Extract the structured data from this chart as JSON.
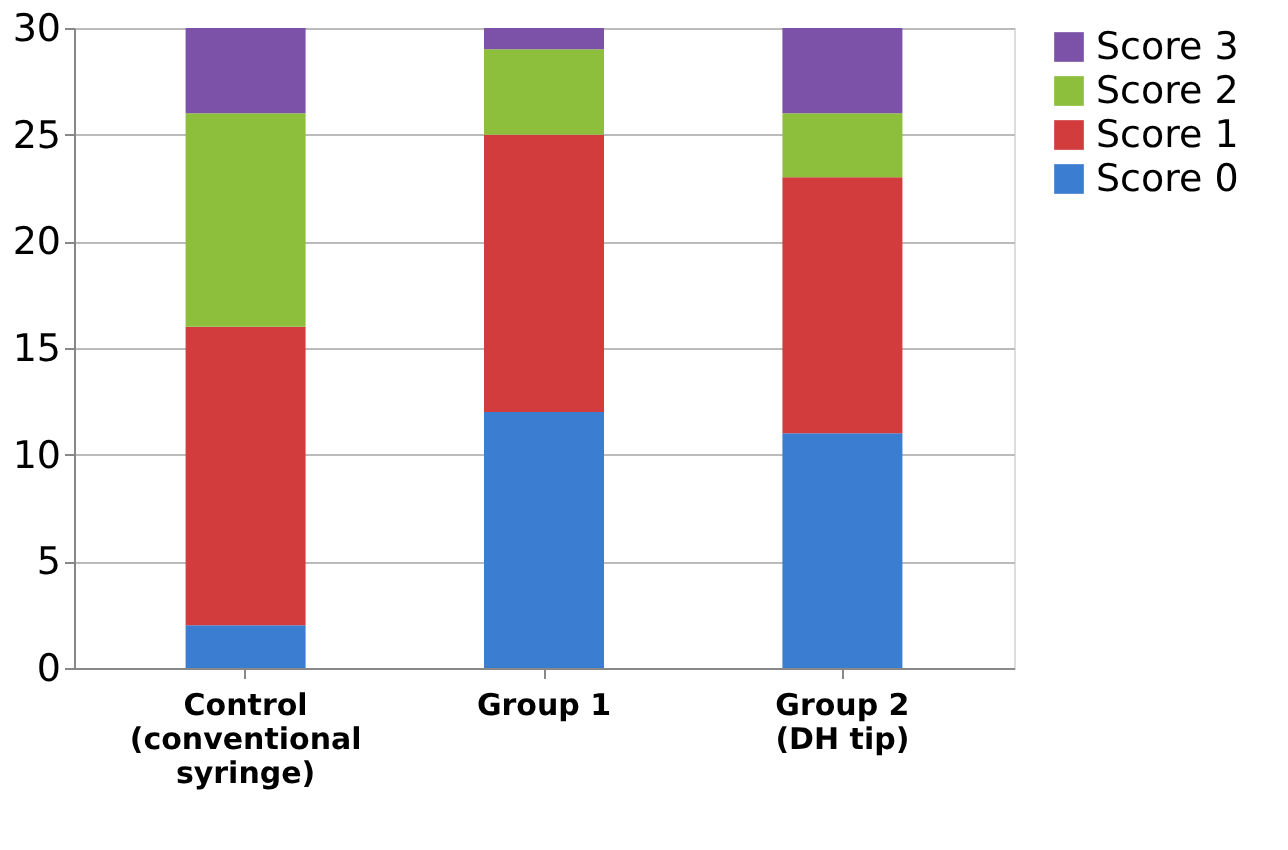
{
  "chart_data": {
    "type": "bar",
    "stacked": true,
    "categories": [
      "Control\n(conventional\nsyringe)",
      "Group 1",
      "Group 2\n(DH tip)"
    ],
    "series": [
      {
        "name": "Score 0",
        "color": "#3b7dd0",
        "values": [
          2,
          12,
          11
        ]
      },
      {
        "name": "Score 1",
        "color": "#d23c3c",
        "values": [
          14,
          13,
          12
        ]
      },
      {
        "name": "Score 2",
        "color": "#8dbf3c",
        "values": [
          10,
          4,
          3
        ]
      },
      {
        "name": "Score 3",
        "color": "#7b52a8",
        "values": [
          4,
          1,
          4
        ]
      }
    ],
    "ylim": [
      0,
      30
    ],
    "yticks": [
      0,
      5,
      10,
      15,
      20,
      25,
      30
    ],
    "grid": "y",
    "legend": "right"
  }
}
